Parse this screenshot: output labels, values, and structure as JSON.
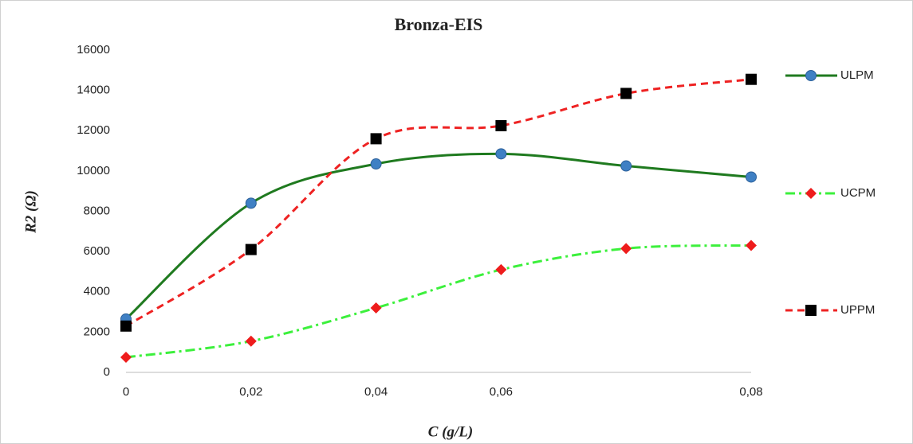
{
  "chart_data": {
    "type": "line",
    "title": "Bronza-EIS",
    "x_label": "C (g/L)",
    "y_label": "R2 (Ω)",
    "categories": [
      "0",
      "0,02",
      "0,04",
      "0,06",
      null,
      "0,08"
    ],
    "ylim": [
      0,
      16000
    ],
    "yticks": [
      0,
      2000,
      4000,
      6000,
      8000,
      10000,
      12000,
      14000,
      16000
    ],
    "grid": false,
    "series": [
      {
        "name": "ULPM",
        "color": "#1f7a1f",
        "marker_color": "#3f80c4",
        "marker": "circle",
        "dash": "solid",
        "values": [
          2650,
          8400,
          10350,
          10850,
          10250,
          9700
        ]
      },
      {
        "name": "UCPM",
        "color": "#3cf03c",
        "marker_color": "#ee1c1c",
        "marker": "diamond",
        "dash": "dashdot",
        "values": [
          750,
          1550,
          3200,
          5100,
          6150,
          6300
        ]
      },
      {
        "name": "UPPM",
        "color": "#ee2222",
        "marker_color": "#000000",
        "marker": "square",
        "dash": "dash",
        "values": [
          2300,
          6100,
          11600,
          12250,
          13850,
          14550
        ]
      }
    ]
  }
}
